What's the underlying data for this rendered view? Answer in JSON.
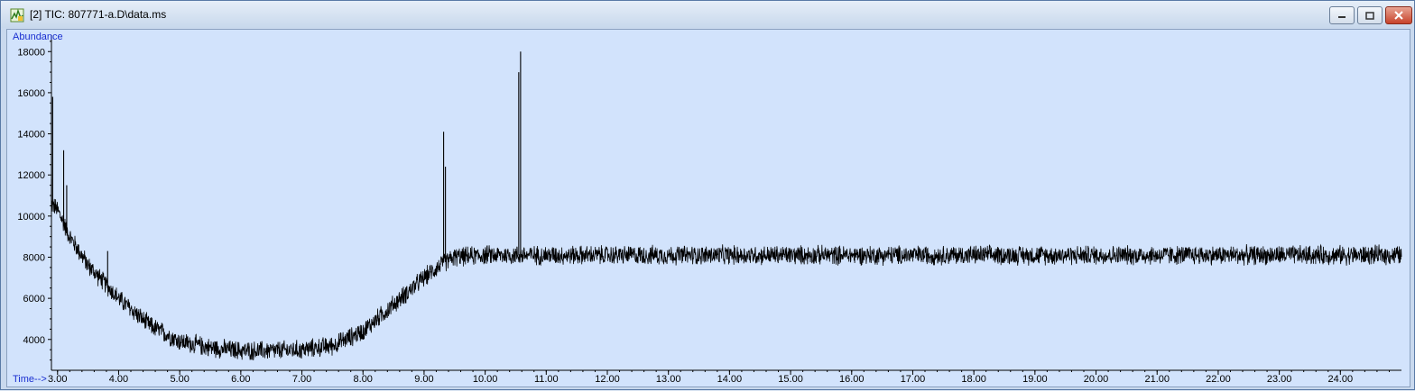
{
  "window": {
    "title": "[2] TIC: 807771-a.D\\data.ms",
    "buttons": {
      "minimize_icon": "minimize-icon",
      "maximize_icon": "maximize-icon",
      "close_icon": "close-icon"
    },
    "accent_color": "#1a2fd0"
  },
  "chart_data": {
    "type": "line",
    "ylabel": "Abundance",
    "xlabel": "Time-->",
    "xlim": [
      2.9,
      25.0
    ],
    "ylim": [
      2500,
      18800
    ],
    "x_ticks": [
      "3.00",
      "4.00",
      "5.00",
      "6.00",
      "7.00",
      "8.00",
      "9.00",
      "10.00",
      "11.00",
      "12.00",
      "13.00",
      "14.00",
      "15.00",
      "16.00",
      "17.00",
      "18.00",
      "19.00",
      "20.00",
      "21.00",
      "22.00",
      "23.00",
      "24.00"
    ],
    "y_ticks": [
      "4000",
      "6000",
      "8000",
      "10000",
      "12000",
      "14000",
      "16000",
      "18000"
    ],
    "grid": false,
    "series": [
      {
        "line_color": "#000000",
        "baseline": [
          [
            2.9,
            10600
          ],
          [
            3.0,
            10300
          ],
          [
            3.2,
            9000
          ],
          [
            3.5,
            7600
          ],
          [
            4.0,
            6000
          ],
          [
            4.5,
            4700
          ],
          [
            5.0,
            3900
          ],
          [
            5.5,
            3600
          ],
          [
            6.0,
            3450
          ],
          [
            6.5,
            3450
          ],
          [
            7.0,
            3500
          ],
          [
            7.5,
            3700
          ],
          [
            8.0,
            4400
          ],
          [
            8.5,
            5700
          ],
          [
            9.0,
            7000
          ],
          [
            9.3,
            7700
          ],
          [
            9.5,
            8000
          ],
          [
            10.0,
            8100
          ],
          [
            12.0,
            8100
          ],
          [
            25.0,
            8100
          ]
        ],
        "noise_amplitude": 450,
        "peaks": [
          {
            "x": 2.9,
            "y": 11800
          },
          {
            "x": 2.92,
            "y": 15800
          },
          {
            "x": 3.1,
            "y": 13200
          },
          {
            "x": 3.15,
            "y": 11500
          },
          {
            "x": 3.82,
            "y": 8300
          },
          {
            "x": 9.32,
            "y": 14100
          },
          {
            "x": 9.35,
            "y": 12400
          },
          {
            "x": 10.55,
            "y": 17000
          },
          {
            "x": 10.58,
            "y": 18000
          }
        ]
      }
    ]
  }
}
